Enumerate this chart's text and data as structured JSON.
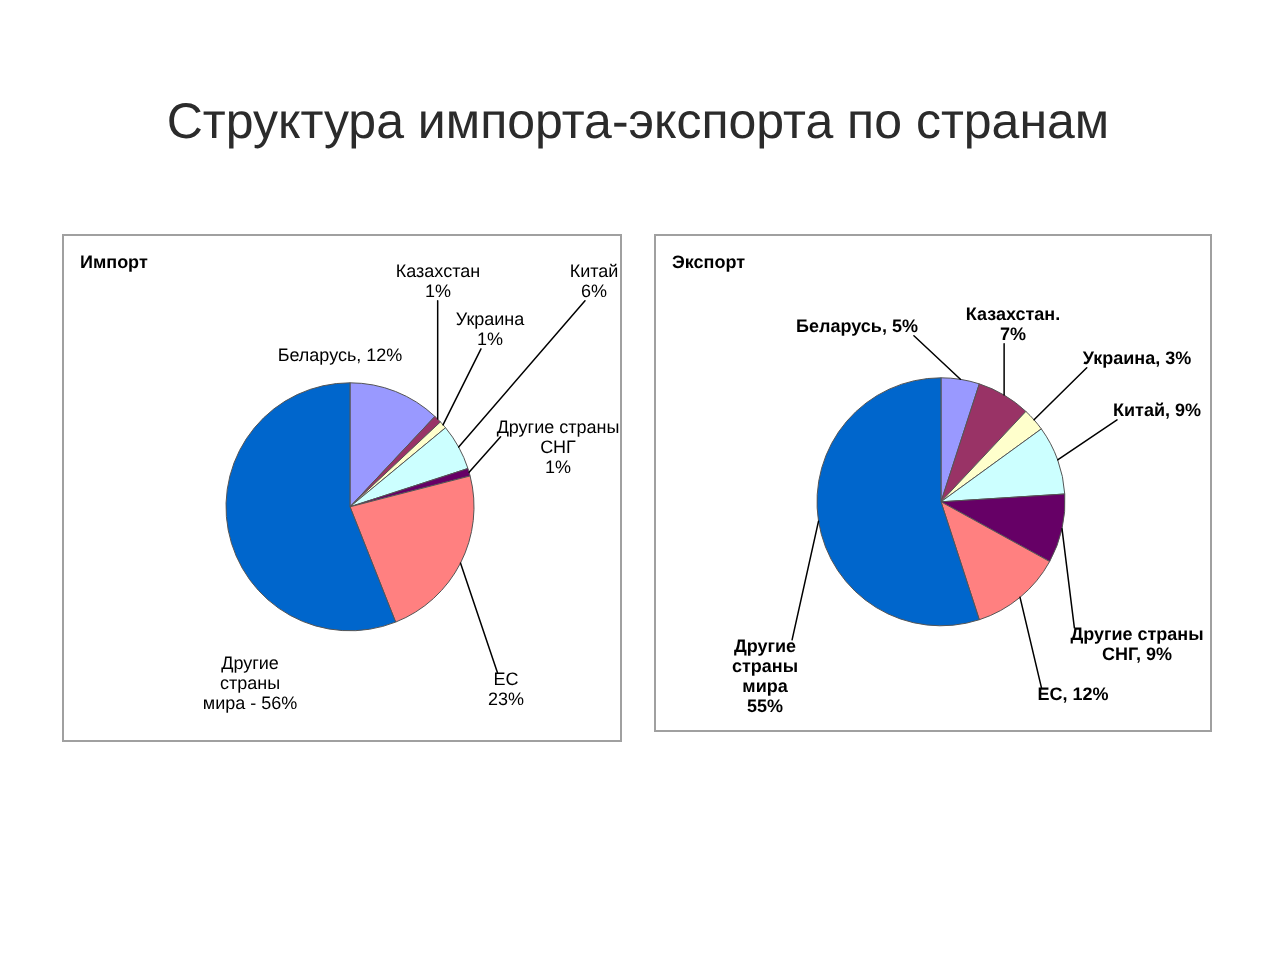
{
  "chart_data": [
    {
      "type": "other",
      "title": "Структура импорта-экспорта по странам"
    },
    {
      "type": "pie",
      "title": "Импорт",
      "categories": [
        "Беларусь",
        "Казахстан",
        "Украина",
        "Китай",
        "Другие страны СНГ",
        "ЕС",
        "Другие страны мира"
      ],
      "values": [
        12,
        1,
        1,
        6,
        1,
        23,
        56
      ],
      "value_labels": [
        "12%",
        "1%",
        "1%",
        "6%",
        "1%",
        "23%",
        "56%"
      ],
      "colors": [
        "#9999ff",
        "#993366",
        "#ffffcc",
        "#ccffff",
        "#660066",
        "#ff8080",
        "#0066cc"
      ]
    },
    {
      "type": "pie",
      "title": "Экспорт",
      "categories": [
        "Беларусь",
        "Казахстан.",
        "Украина",
        "Китай",
        "Другие страны СНГ",
        "ЕС",
        "Другие страны мира"
      ],
      "values": [
        5,
        7,
        3,
        9,
        9,
        12,
        55
      ],
      "value_labels": [
        "5%",
        "7%",
        "3%",
        "9%",
        "9%",
        "12%",
        "55%"
      ],
      "colors": [
        "#9999ff",
        "#993366",
        "#ffffcc",
        "#ccffff",
        "#660066",
        "#ff8080",
        "#0066cc"
      ]
    }
  ]
}
